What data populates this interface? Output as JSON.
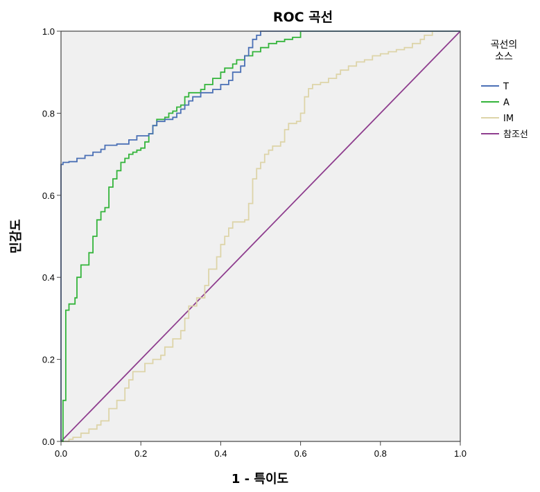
{
  "chart_data": {
    "type": "line",
    "title": "ROC 곡선",
    "xlabel": "1 - 특이도",
    "ylabel": "민감도",
    "xlim": [
      0,
      1
    ],
    "ylim": [
      0,
      1
    ],
    "x_ticks": [
      "0.0",
      "0.2",
      "0.4",
      "0.6",
      "0.8",
      "1.0"
    ],
    "y_ticks": [
      "0.0",
      "0.2",
      "0.4",
      "0.6",
      "0.8",
      "1.0"
    ],
    "grid": false,
    "background": "#f0f0f0",
    "legend": {
      "title_lines": [
        "곡선의",
        "소스"
      ],
      "position": "right"
    },
    "series": [
      {
        "name": "T",
        "color": "#4a6fb5",
        "step": true,
        "points": [
          [
            0,
            0
          ],
          [
            0,
            0.675
          ],
          [
            0.005,
            0.68
          ],
          [
            0.02,
            0.682
          ],
          [
            0.04,
            0.69
          ],
          [
            0.06,
            0.697
          ],
          [
            0.08,
            0.705
          ],
          [
            0.1,
            0.712
          ],
          [
            0.11,
            0.722
          ],
          [
            0.14,
            0.725
          ],
          [
            0.17,
            0.735
          ],
          [
            0.19,
            0.745
          ],
          [
            0.22,
            0.75
          ],
          [
            0.23,
            0.77
          ],
          [
            0.24,
            0.78
          ],
          [
            0.26,
            0.785
          ],
          [
            0.28,
            0.79
          ],
          [
            0.29,
            0.8
          ],
          [
            0.3,
            0.81
          ],
          [
            0.31,
            0.82
          ],
          [
            0.32,
            0.83
          ],
          [
            0.33,
            0.84
          ],
          [
            0.35,
            0.85
          ],
          [
            0.38,
            0.858
          ],
          [
            0.4,
            0.87
          ],
          [
            0.42,
            0.88
          ],
          [
            0.43,
            0.9
          ],
          [
            0.45,
            0.915
          ],
          [
            0.46,
            0.94
          ],
          [
            0.47,
            0.96
          ],
          [
            0.48,
            0.98
          ],
          [
            0.49,
            0.99
          ],
          [
            0.5,
            1
          ],
          [
            1,
            1
          ]
        ]
      },
      {
        "name": "A",
        "color": "#33b43a",
        "step": true,
        "points": [
          [
            0,
            0
          ],
          [
            0.005,
            0
          ],
          [
            0.005,
            0.1
          ],
          [
            0.012,
            0.1
          ],
          [
            0.012,
            0.32
          ],
          [
            0.02,
            0.335
          ],
          [
            0.035,
            0.35
          ],
          [
            0.04,
            0.4
          ],
          [
            0.05,
            0.43
          ],
          [
            0.06,
            0.43
          ],
          [
            0.07,
            0.46
          ],
          [
            0.08,
            0.5
          ],
          [
            0.09,
            0.54
          ],
          [
            0.1,
            0.56
          ],
          [
            0.11,
            0.57
          ],
          [
            0.12,
            0.62
          ],
          [
            0.13,
            0.64
          ],
          [
            0.14,
            0.66
          ],
          [
            0.15,
            0.68
          ],
          [
            0.16,
            0.69
          ],
          [
            0.17,
            0.7
          ],
          [
            0.18,
            0.705
          ],
          [
            0.19,
            0.71
          ],
          [
            0.2,
            0.715
          ],
          [
            0.21,
            0.73
          ],
          [
            0.22,
            0.75
          ],
          [
            0.23,
            0.77
          ],
          [
            0.24,
            0.785
          ],
          [
            0.26,
            0.79
          ],
          [
            0.27,
            0.8
          ],
          [
            0.28,
            0.805
          ],
          [
            0.29,
            0.815
          ],
          [
            0.3,
            0.82
          ],
          [
            0.31,
            0.84
          ],
          [
            0.32,
            0.85
          ],
          [
            0.35,
            0.858
          ],
          [
            0.36,
            0.87
          ],
          [
            0.38,
            0.885
          ],
          [
            0.4,
            0.9
          ],
          [
            0.41,
            0.91
          ],
          [
            0.43,
            0.92
          ],
          [
            0.44,
            0.93
          ],
          [
            0.46,
            0.94
          ],
          [
            0.48,
            0.95
          ],
          [
            0.5,
            0.96
          ],
          [
            0.52,
            0.97
          ],
          [
            0.54,
            0.975
          ],
          [
            0.56,
            0.98
          ],
          [
            0.58,
            0.985
          ],
          [
            0.6,
            1
          ],
          [
            1,
            1
          ]
        ]
      },
      {
        "name": "IM",
        "color": "#ddd4a8",
        "step": true,
        "points": [
          [
            0,
            0
          ],
          [
            0.02,
            0.005
          ],
          [
            0.03,
            0.01
          ],
          [
            0.05,
            0.02
          ],
          [
            0.07,
            0.03
          ],
          [
            0.09,
            0.04
          ],
          [
            0.1,
            0.05
          ],
          [
            0.12,
            0.08
          ],
          [
            0.14,
            0.1
          ],
          [
            0.16,
            0.13
          ],
          [
            0.17,
            0.15
          ],
          [
            0.18,
            0.17
          ],
          [
            0.21,
            0.19
          ],
          [
            0.23,
            0.2
          ],
          [
            0.25,
            0.21
          ],
          [
            0.26,
            0.23
          ],
          [
            0.28,
            0.25
          ],
          [
            0.3,
            0.27
          ],
          [
            0.31,
            0.3
          ],
          [
            0.32,
            0.33
          ],
          [
            0.34,
            0.35
          ],
          [
            0.36,
            0.38
          ],
          [
            0.37,
            0.42
          ],
          [
            0.39,
            0.45
          ],
          [
            0.4,
            0.48
          ],
          [
            0.41,
            0.5
          ],
          [
            0.42,
            0.52
          ],
          [
            0.43,
            0.535
          ],
          [
            0.46,
            0.54
          ],
          [
            0.47,
            0.58
          ],
          [
            0.48,
            0.64
          ],
          [
            0.49,
            0.665
          ],
          [
            0.5,
            0.68
          ],
          [
            0.51,
            0.7
          ],
          [
            0.52,
            0.71
          ],
          [
            0.53,
            0.72
          ],
          [
            0.55,
            0.73
          ],
          [
            0.56,
            0.76
          ],
          [
            0.57,
            0.775
          ],
          [
            0.59,
            0.78
          ],
          [
            0.6,
            0.8
          ],
          [
            0.61,
            0.84
          ],
          [
            0.62,
            0.86
          ],
          [
            0.63,
            0.87
          ],
          [
            0.65,
            0.875
          ],
          [
            0.67,
            0.885
          ],
          [
            0.69,
            0.895
          ],
          [
            0.7,
            0.905
          ],
          [
            0.72,
            0.915
          ],
          [
            0.74,
            0.925
          ],
          [
            0.76,
            0.93
          ],
          [
            0.78,
            0.94
          ],
          [
            0.8,
            0.945
          ],
          [
            0.82,
            0.95
          ],
          [
            0.84,
            0.955
          ],
          [
            0.86,
            0.96
          ],
          [
            0.88,
            0.97
          ],
          [
            0.9,
            0.98
          ],
          [
            0.91,
            0.99
          ],
          [
            0.93,
            1
          ],
          [
            1,
            1
          ]
        ]
      },
      {
        "name": "참조선",
        "color": "#8e3d8e",
        "step": false,
        "points": [
          [
            0,
            0
          ],
          [
            1,
            1
          ]
        ]
      }
    ]
  }
}
